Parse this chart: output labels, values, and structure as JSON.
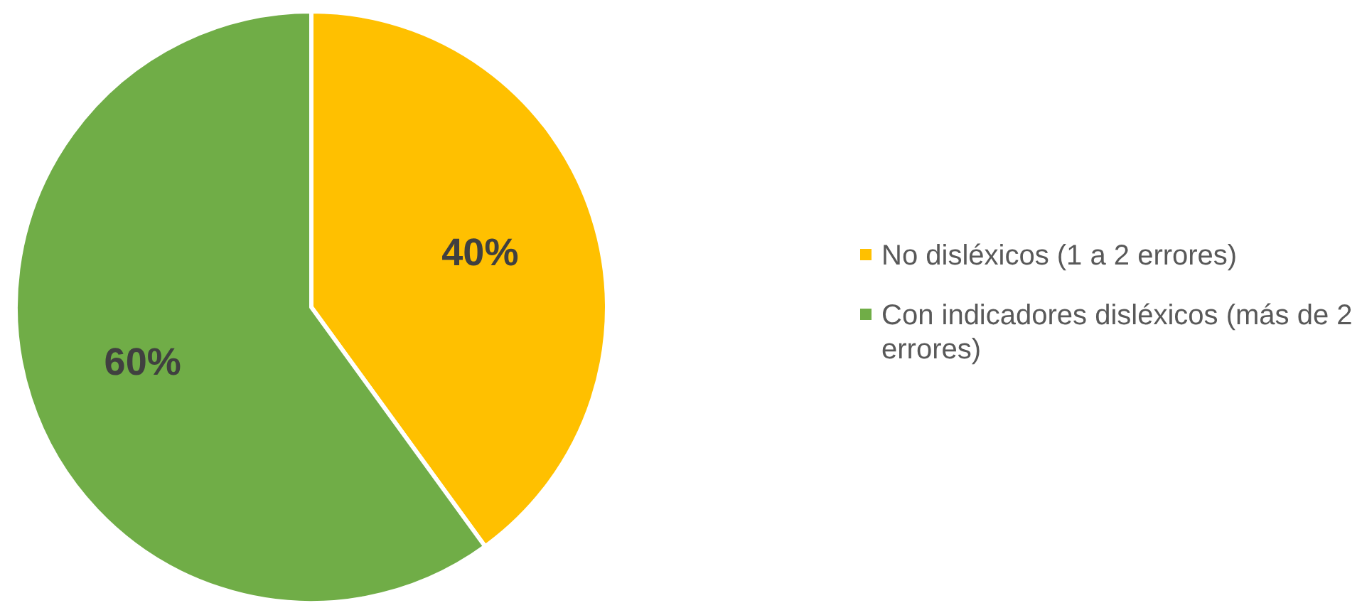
{
  "chart_data": {
    "type": "pie",
    "categories": [
      "No disléxicos (1 a 2 errores)",
      "Con indicadores disléxicos (más de 2 errores)"
    ],
    "values": [
      40,
      60
    ],
    "colors": [
      "#ffc000",
      "#70ad47"
    ],
    "value_labels": [
      "40%",
      "60%"
    ],
    "legend": "right"
  }
}
